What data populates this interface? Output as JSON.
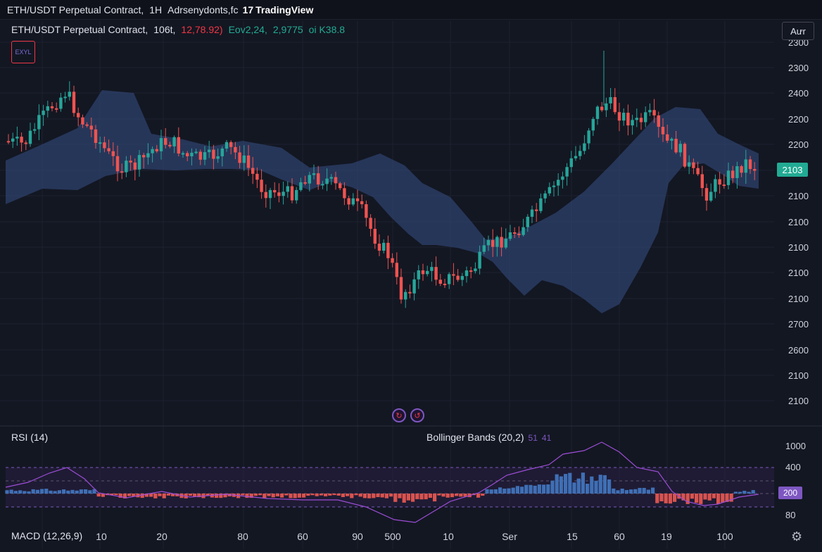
{
  "window": {
    "title": "ETH/USDT Perpetual Contract,",
    "interval": "1H",
    "subtitle": "Adrsenydonts,fc",
    "brand_mark": "17",
    "brand": "TradingView"
  },
  "legend": {
    "symbol": "ETH/USDT Perpetual Contract,",
    "interval": "106t,",
    "change": "12,78.92)",
    "ohlc": "Eov2,24,",
    "vol": "2,9775",
    "extra": "oi K38.8"
  },
  "indicator_icon_label": "EXYL",
  "auto_button": "Aưr",
  "last_price": "2103",
  "price_axis": [
    "2300",
    "2300",
    "2400",
    "2200",
    "2200",
    "2100",
    "2100",
    "2100",
    "2100",
    "2100",
    "2700",
    "2600",
    "2100",
    "2100"
  ],
  "oscillator_axis": [
    "1000",
    "400",
    "200",
    "80"
  ],
  "rsi_value_tag": "200",
  "time_axis": [
    "10",
    "20",
    "80",
    "60",
    "90",
    "500",
    "10",
    "Ser",
    "15",
    "60",
    "19",
    "100"
  ],
  "indicators": {
    "rsi": "RSI (14)",
    "bollinger": "Bollinger Bands (20,2)",
    "bollinger_values": [
      "51",
      "41"
    ],
    "macd": "MACD (12,26,9)"
  },
  "colors": {
    "background": "#131722",
    "up": "#26a69a",
    "down": "#ef5350",
    "band": "#2a3a5e",
    "rsi_line": "#9c4dd6",
    "macd_up": "#3f6fb5",
    "macd_down": "#d9534f",
    "accent": "#7e57c2"
  },
  "icons": [
    "replay-icon",
    "alert-icon",
    "gear-icon"
  ]
}
